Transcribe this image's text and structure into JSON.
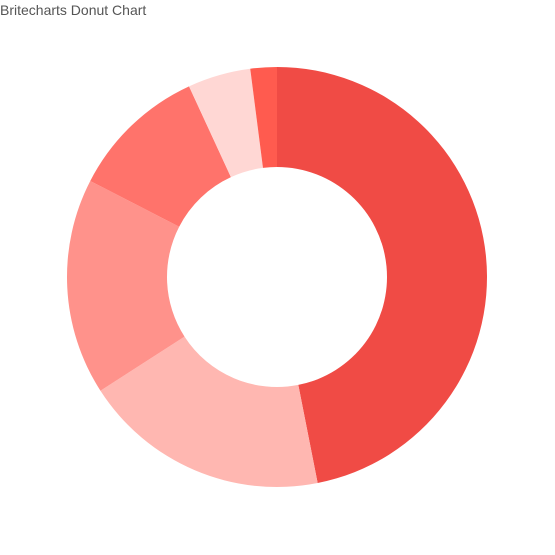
{
  "page": {
    "title": "Britecharts Donut Chart"
  },
  "chart_data": {
    "type": "pie",
    "title": "Britecharts Donut Chart",
    "donut": true,
    "legend": "none",
    "slices": [
      {
        "value": 48.4,
        "color": "#f04b45"
      },
      {
        "value": 19.6,
        "color": "#ffb7b1"
      },
      {
        "value": 17.2,
        "color": "#ff928b"
      },
      {
        "value": 10.9,
        "color": "#ff736b"
      },
      {
        "value": 5.0,
        "color": "#ffd7d4"
      },
      {
        "value": 2.1,
        "color": "#ff5b4f"
      }
    ]
  }
}
